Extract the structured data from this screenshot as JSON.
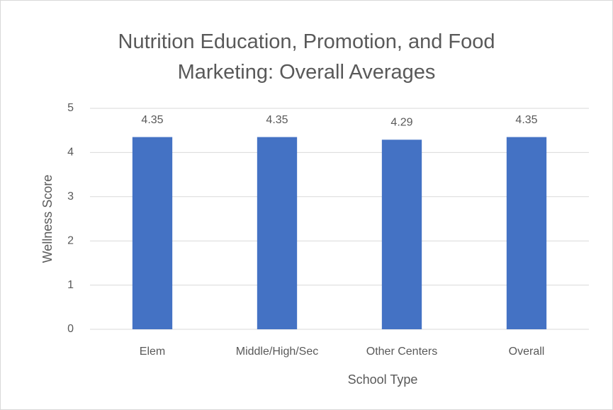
{
  "chart_data": {
    "type": "bar",
    "title": "Nutrition Education, Promotion, and Food Marketing: Overall Averages",
    "x_label": "School Type",
    "y_label": "Wellness Score",
    "categories": [
      "Elem",
      "Middle/High/Sec",
      "Other Centers",
      "Overall"
    ],
    "values": [
      4.35,
      4.35,
      4.29,
      4.35
    ],
    "color": "#4472c4",
    "ylim": [
      0,
      5
    ],
    "yticks": [
      0,
      1,
      2,
      3,
      4,
      5
    ],
    "grid": true
  }
}
